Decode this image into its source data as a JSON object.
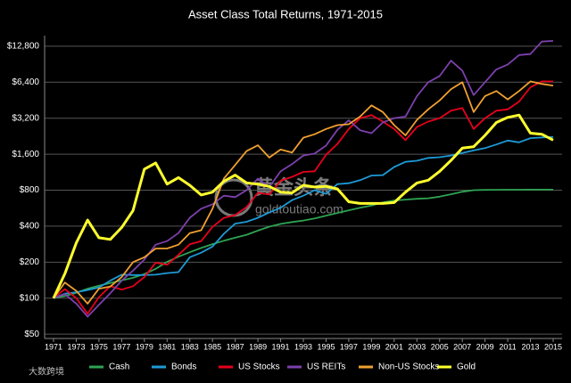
{
  "chart_data": {
    "type": "line",
    "title": "Asset Class Total Returns, 1971-2015",
    "x": [
      1971,
      1972,
      1973,
      1974,
      1975,
      1976,
      1977,
      1978,
      1979,
      1980,
      1981,
      1982,
      1983,
      1984,
      1985,
      1986,
      1987,
      1988,
      1989,
      1990,
      1991,
      1992,
      1993,
      1994,
      1995,
      1996,
      1997,
      1998,
      1999,
      2000,
      2001,
      2002,
      2003,
      2004,
      2005,
      2006,
      2007,
      2008,
      2009,
      2010,
      2011,
      2012,
      2013,
      2014,
      2015
    ],
    "xticks": [
      1971,
      1973,
      1975,
      1977,
      1979,
      1981,
      1983,
      1985,
      1987,
      1989,
      1991,
      1993,
      1995,
      1997,
      1999,
      2001,
      2003,
      2005,
      2007,
      2009,
      2011,
      2013,
      2015
    ],
    "ylim": [
      46,
      15700
    ],
    "log_scale": true,
    "grid": true,
    "yticks": [
      {
        "value": 50,
        "label": "$50"
      },
      {
        "value": 100,
        "label": "$100"
      },
      {
        "value": 200,
        "label": "$200"
      },
      {
        "value": 400,
        "label": "$400"
      },
      {
        "value": 800,
        "label": "$800"
      },
      {
        "value": 1600,
        "label": "$1,600"
      },
      {
        "value": 3200,
        "label": "$3,200"
      },
      {
        "value": 6400,
        "label": "$6,400"
      },
      {
        "value": 12800,
        "label": "$12,800"
      }
    ],
    "series": [
      {
        "name": "Cash",
        "color": "#2ea352",
        "values": [
          100,
          104,
          111,
          120,
          127,
          134,
          141,
          148,
          159,
          176,
          201,
          222,
          242,
          263,
          283,
          302,
          320,
          339,
          367,
          396,
          418,
          433,
          446,
          464,
          490,
          516,
          543,
          570,
          596,
          632,
          656,
          667,
          678,
          685,
          706,
          740,
          776,
          800,
          805,
          806,
          807,
          807,
          808,
          808,
          808
        ]
      },
      {
        "name": "Bonds",
        "color": "#1e9ad6",
        "values": [
          100,
          109,
          112,
          117,
          123,
          140,
          157,
          156,
          156,
          157,
          162,
          165,
          220,
          240,
          270,
          345,
          420,
          435,
          470,
          520,
          570,
          660,
          720,
          800,
          745,
          900,
          915,
          970,
          1060,
          1070,
          1250,
          1380,
          1410,
          1490,
          1510,
          1560,
          1640,
          1720,
          1800,
          1930,
          2080,
          2010,
          2180,
          2210,
          2230
        ]
      },
      {
        "name": "US Stocks",
        "color": "#e8001c",
        "values": [
          100,
          119,
          100,
          74,
          102,
          126,
          118,
          126,
          150,
          198,
          190,
          230,
          282,
          300,
          395,
          469,
          495,
          578,
          760,
          736,
          960,
          1033,
          1137,
          1152,
          1584,
          1950,
          2600,
          3200,
          3400,
          3000,
          2600,
          2100,
          2700,
          3000,
          3200,
          3700,
          3900,
          2600,
          3200,
          3700,
          3800,
          4400,
          5800,
          6500,
          6500
        ]
      },
      {
        "name": "US REITs",
        "color": "#7d40ad",
        "values": [
          100,
          108,
          90,
          70,
          88,
          110,
          140,
          170,
          210,
          280,
          300,
          350,
          470,
          560,
          610,
          720,
          700,
          800,
          1000,
          850,
          1150,
          1320,
          1560,
          1620,
          1890,
          2560,
          3070,
          2540,
          2400,
          2950,
          3200,
          3300,
          4900,
          6400,
          7200,
          9700,
          8000,
          5000,
          6400,
          8200,
          9000,
          10800,
          11000,
          14000,
          14200
        ]
      },
      {
        "name": "Non-US Stocks",
        "color": "#f0a030",
        "values": [
          100,
          135,
          115,
          90,
          120,
          125,
          150,
          200,
          220,
          260,
          260,
          280,
          350,
          370,
          560,
          1000,
          1300,
          1700,
          1900,
          1500,
          1750,
          1650,
          2200,
          2350,
          2600,
          2800,
          2850,
          3300,
          4100,
          3600,
          2800,
          2300,
          3100,
          3800,
          4500,
          5600,
          6400,
          3600,
          4900,
          5400,
          4600,
          5400,
          6500,
          6200,
          6000
        ]
      },
      {
        "name": "Gold",
        "color": "#ffff2e",
        "values": [
          100,
          160,
          290,
          450,
          320,
          310,
          390,
          540,
          1200,
          1350,
          900,
          1020,
          880,
          730,
          770,
          950,
          1070,
          920,
          900,
          860,
          770,
          760,
          880,
          850,
          860,
          820,
          640,
          620,
          620,
          620,
          630,
          770,
          920,
          970,
          1150,
          1420,
          1800,
          1850,
          2300,
          2950,
          3250,
          3400,
          2400,
          2350,
          2100
        ]
      }
    ]
  },
  "watermark": {
    "brand": "黄金头条",
    "url": "goldtoutiao.com",
    "corner": "大数跨境"
  }
}
